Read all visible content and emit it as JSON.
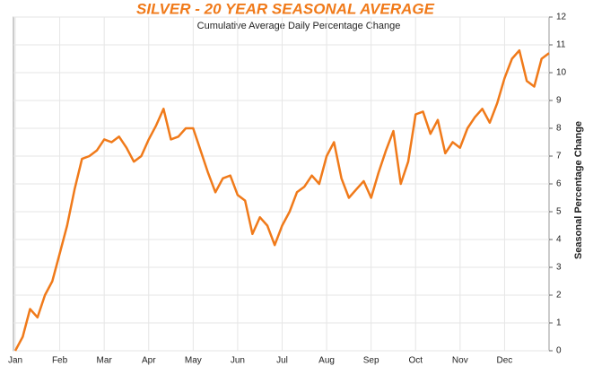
{
  "chart_data": {
    "type": "line",
    "title": "SILVER - 20 YEAR SEASONAL AVERAGE",
    "subtitle": "Cumulative Average Daily Percentage Change",
    "y_label": "Seasonal Percentage Change",
    "categories": [
      "Jan",
      null,
      null,
      null,
      null,
      null,
      "Feb",
      null,
      null,
      null,
      null,
      null,
      "Mar",
      null,
      null,
      null,
      null,
      null,
      "Apr",
      null,
      null,
      null,
      null,
      null,
      "May",
      null,
      null,
      null,
      null,
      null,
      "Jun",
      null,
      null,
      null,
      null,
      null,
      "Jul",
      null,
      null,
      null,
      null,
      null,
      "Aug",
      null,
      null,
      null,
      null,
      null,
      "Sep",
      null,
      null,
      null,
      null,
      null,
      "Oct",
      null,
      null,
      null,
      null,
      null,
      "Nov",
      null,
      null,
      null,
      null,
      null,
      "Dec",
      null,
      null,
      null,
      null,
      null,
      null
    ],
    "series": [
      {
        "name": "Silver",
        "color": "#f07a1a",
        "values": [
          0,
          0.5,
          1.5,
          1.2,
          2.0,
          2.5,
          3.5,
          4.5,
          5.8,
          6.9,
          7.0,
          7.2,
          7.6,
          7.5,
          7.7,
          7.3,
          6.8,
          7.0,
          7.6,
          8.1,
          8.7,
          7.6,
          7.7,
          8.0,
          8.0,
          7.2,
          6.4,
          5.7,
          6.2,
          6.3,
          5.6,
          5.4,
          4.2,
          4.8,
          4.5,
          3.8,
          4.5,
          5.0,
          5.7,
          5.9,
          6.3,
          6.0,
          7.0,
          7.5,
          6.2,
          5.5,
          5.8,
          6.1,
          5.5,
          6.4,
          7.2,
          7.9,
          6.0,
          6.8,
          8.5,
          8.6,
          7.8,
          8.3,
          7.1,
          7.5,
          7.3,
          8.0,
          8.4,
          8.7,
          8.2,
          8.9,
          9.8,
          10.5,
          10.8,
          9.7,
          9.5,
          10.5,
          10.7
        ]
      }
    ],
    "ylim": [
      0,
      12
    ],
    "yticks": [
      0,
      1,
      2,
      3,
      4,
      5,
      6,
      7,
      8,
      9,
      10,
      11,
      12
    ],
    "grid": true
  }
}
